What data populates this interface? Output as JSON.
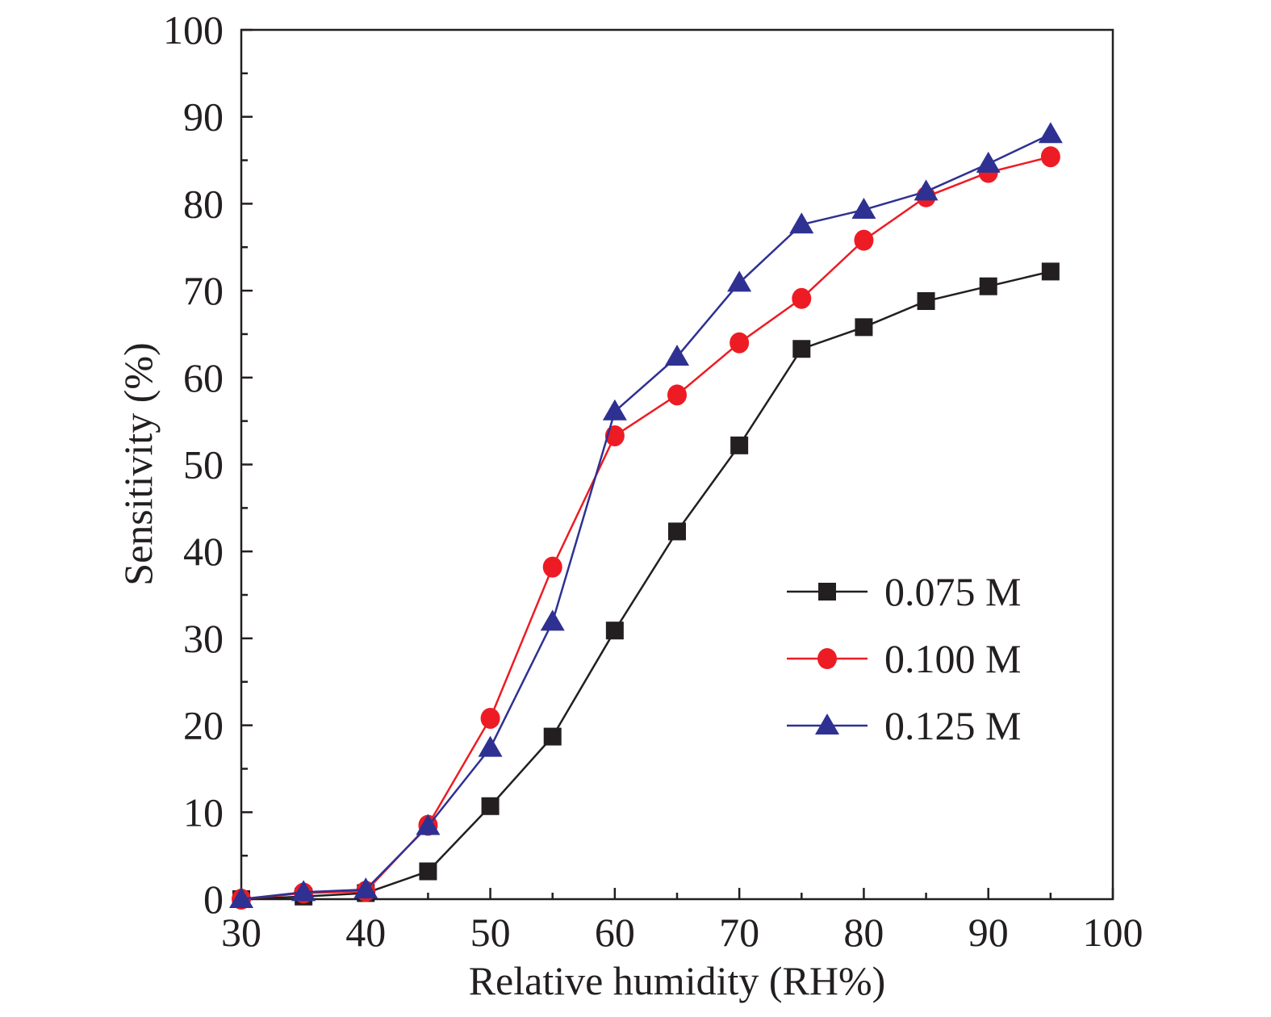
{
  "chart_data": {
    "type": "line",
    "xlabel": "Relative humidity (RH%)",
    "ylabel": "Sensitivity (%)",
    "xlim": [
      30,
      100
    ],
    "ylim": [
      0,
      100
    ],
    "x_ticks": [
      "30",
      "40",
      "50",
      "60",
      "70",
      "80",
      "90",
      "100"
    ],
    "y_ticks": [
      "0",
      "10",
      "20",
      "30",
      "40",
      "50",
      "60",
      "70",
      "80",
      "90",
      "100"
    ],
    "grid": false,
    "legend_position": "bottom-right",
    "x": [
      30,
      35,
      40,
      45,
      50,
      55,
      60,
      65,
      70,
      75,
      80,
      85,
      90,
      95
    ],
    "series": [
      {
        "name": "0.075 M",
        "color": "#231f20",
        "marker": "square",
        "values": [
          0,
          0.3,
          0.7,
          3.2,
          10.7,
          18.7,
          30.9,
          42.3,
          52.2,
          63.3,
          65.8,
          68.8,
          70.5,
          72.2
        ]
      },
      {
        "name": "0.100 M",
        "color": "#ed1c24",
        "marker": "circle",
        "values": [
          0,
          0.7,
          0.9,
          8.5,
          20.8,
          38.2,
          53.3,
          58.0,
          64.0,
          69.1,
          75.8,
          80.8,
          83.6,
          85.4
        ]
      },
      {
        "name": "0.125 M",
        "color": "#2e3192",
        "marker": "triangle",
        "values": [
          0,
          0.8,
          1.1,
          8.4,
          17.4,
          31.9,
          56.1,
          62.4,
          70.9,
          77.6,
          79.3,
          81.4,
          84.6,
          88.0
        ]
      }
    ]
  }
}
